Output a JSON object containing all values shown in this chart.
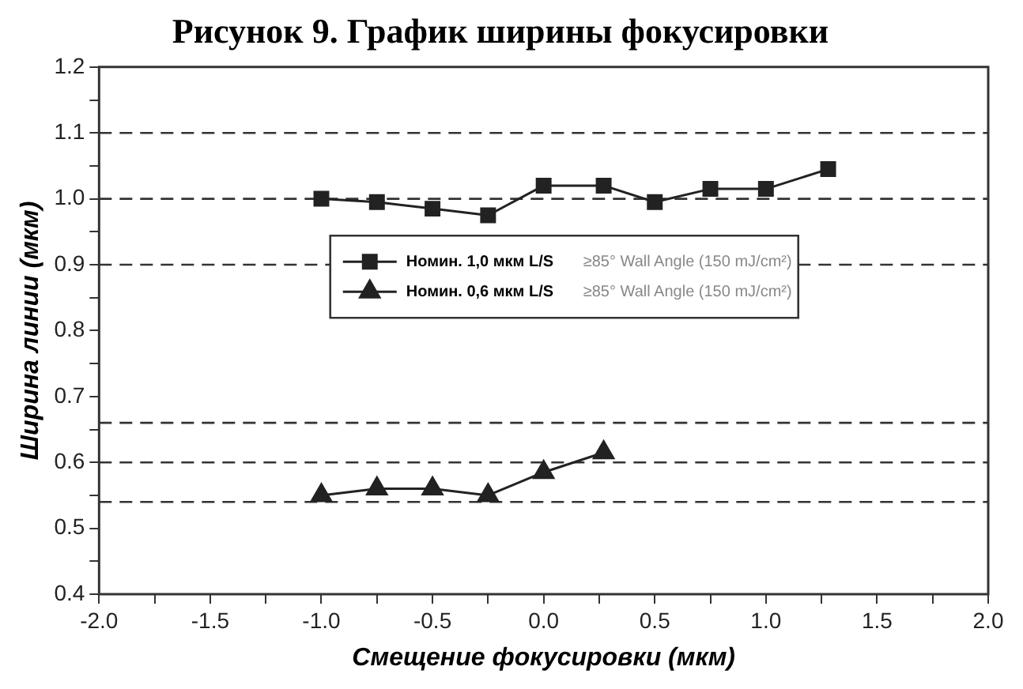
{
  "chart_data": {
    "type": "line",
    "title": "Рисунок 9. График ширины фокусировки",
    "xlabel": "Смещение фокусировки (мкм)",
    "ylabel": "Ширина линии (мкм)",
    "xlim": [
      -2.0,
      2.0
    ],
    "xticks": [
      {
        "value": -2.0,
        "label": "-2.0"
      },
      {
        "value": -1.75,
        "label": null
      },
      {
        "value": -1.5,
        "label": "-1.5"
      },
      {
        "value": -1.25,
        "label": null
      },
      {
        "value": -1.0,
        "label": "-1.0"
      },
      {
        "value": -0.75,
        "label": null
      },
      {
        "value": -0.5,
        "label": "-0.5"
      },
      {
        "value": -0.25,
        "label": null
      },
      {
        "value": 0,
        "label": "0.0"
      },
      {
        "value": 0.25,
        "label": null
      },
      {
        "value": 0.5,
        "label": "0.5"
      },
      {
        "value": 0.75,
        "label": null
      },
      {
        "value": 1.0,
        "label": "1.0"
      },
      {
        "value": 1.25,
        "label": null
      },
      {
        "value": 1.5,
        "label": "1.5"
      },
      {
        "value": 1.75,
        "label": null
      },
      {
        "value": 2.0,
        "label": "2.0"
      }
    ],
    "ylim": [
      0.4,
      1.2
    ],
    "yticks": [
      0.4,
      {
        "value": 0.45,
        "label": null
      },
      0.5,
      {
        "value": 0.55,
        "label": null
      },
      0.6,
      {
        "value": 0.65,
        "label": null
      },
      0.7,
      {
        "value": 0.75,
        "label": null
      },
      0.8,
      {
        "value": 0.85,
        "label": null
      },
      0.9,
      {
        "value": 0.95,
        "label": null
      },
      {
        "value": 1.0,
        "label": "1.0"
      },
      {
        "value": 1.05,
        "label": null
      },
      1.1,
      {
        "value": 1.15,
        "label": null
      },
      1.2
    ],
    "series": [
      {
        "name": "Номин. 1,0 мкм L/S",
        "color": "#222222",
        "marker": "square",
        "x": [
          -1.0,
          -0.75,
          -0.5,
          -0.25,
          0.0,
          0.27,
          0.5,
          0.75,
          1.0,
          1.28
        ],
        "values": [
          1.0,
          0.995,
          0.985,
          0.975,
          1.02,
          1.02,
          0.995,
          1.015,
          1.015,
          1.045
        ]
      },
      {
        "name": "Номин. 0,6 мкм L/S",
        "color": "#222222",
        "marker": "triangle",
        "x": [
          -1.0,
          -0.75,
          -0.5,
          -0.25,
          0.0,
          0.27
        ],
        "values": [
          0.55,
          0.56,
          0.56,
          0.55,
          0.585,
          0.615
        ]
      }
    ],
    "annotations": [
      "≥85° Wall Angle (150 mJ/cm²)",
      "≥85° Wall Angle (150 mJ/cm²)"
    ],
    "ref_lines": [
      {
        "axis": "y",
        "value": 1.1,
        "line_style": "dashed"
      },
      {
        "axis": "y",
        "value": 1.0,
        "line_style": "dashed"
      },
      {
        "axis": "y",
        "value": 0.9,
        "line_style": "dashed"
      },
      {
        "axis": "y",
        "value": 0.66,
        "line_style": "dashed"
      },
      {
        "axis": "y",
        "value": 0.6,
        "line_style": "dashed"
      },
      {
        "axis": "y",
        "value": 0.54,
        "line_style": "dashed"
      }
    ],
    "grid": false,
    "legend": "top",
    "line_style": "solid"
  }
}
